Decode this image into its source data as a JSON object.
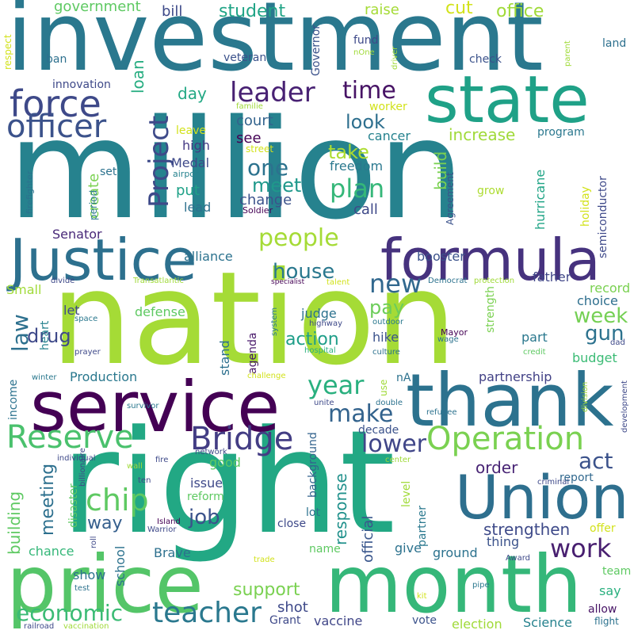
{
  "words": [
    {
      "text": "million",
      "color": "#26828e"
    },
    {
      "text": "nation",
      "color": "#a5db36"
    },
    {
      "text": "right",
      "color": "#22a884"
    },
    {
      "text": "investment",
      "color": "#2a788e"
    },
    {
      "text": "service",
      "color": "#440154"
    },
    {
      "text": "thank",
      "color": "#2c728e"
    },
    {
      "text": "month",
      "color": "#35b779"
    },
    {
      "text": "price",
      "color": "#54c568"
    },
    {
      "text": "Justice",
      "color": "#2d708e"
    },
    {
      "text": "formula",
      "color": "#46327e"
    },
    {
      "text": "state",
      "color": "#1fa187"
    },
    {
      "text": "Union",
      "color": "#2e6f8e"
    },
    {
      "text": "force",
      "color": "#3e4989"
    },
    {
      "text": "officer",
      "color": "#3b528b"
    },
    {
      "text": "Reserve",
      "color": "#4ac16d"
    },
    {
      "text": "Bridge",
      "color": "#433d84"
    },
    {
      "text": "Operation",
      "color": "#7ad151"
    },
    {
      "text": "Project",
      "color": "#3e4a89"
    },
    {
      "text": "teacher",
      "color": "#2a788e"
    },
    {
      "text": "economic",
      "color": "#3bbb75"
    },
    {
      "text": "chip",
      "color": "#5ec962"
    },
    {
      "text": "work",
      "color": "#481f70"
    },
    {
      "text": "leader",
      "color": "#482173"
    },
    {
      "text": "plan",
      "color": "#35b779"
    },
    {
      "text": "people",
      "color": "#a5db36"
    },
    {
      "text": "house",
      "color": "#2a788e"
    },
    {
      "text": "new",
      "color": "#31688e"
    },
    {
      "text": "year",
      "color": "#2ab07f"
    },
    {
      "text": "make",
      "color": "#33638d"
    },
    {
      "text": "lower",
      "color": "#404688"
    },
    {
      "text": "act",
      "color": "#3b528b"
    },
    {
      "text": "meet",
      "color": "#1f988b"
    },
    {
      "text": "one",
      "color": "#2c728e"
    },
    {
      "text": "time",
      "color": "#471365"
    },
    {
      "text": "look",
      "color": "#2e6f8e"
    },
    {
      "text": "take",
      "color": "#addc30"
    },
    {
      "text": "law",
      "color": "#2d708e"
    },
    {
      "text": "drug",
      "color": "#3e4989"
    },
    {
      "text": "action",
      "color": "#1f9e89"
    },
    {
      "text": "pay",
      "color": "#6ccd5a"
    },
    {
      "text": "week",
      "color": "#75d054"
    },
    {
      "text": "gun",
      "color": "#2c728e"
    },
    {
      "text": "support",
      "color": "#7ad151"
    },
    {
      "text": "job",
      "color": "#3b528b"
    },
    {
      "text": "way",
      "color": "#355f8d"
    },
    {
      "text": "meeting",
      "color": "#2d708e"
    },
    {
      "text": "building",
      "color": "#5ec962"
    },
    {
      "text": "order",
      "color": "#482475"
    },
    {
      "text": "strengthen",
      "color": "#3e4a89"
    },
    {
      "text": "response",
      "color": "#21918c"
    },
    {
      "text": "official",
      "color": "#39568c"
    },
    {
      "text": "student",
      "color": "#20a486"
    },
    {
      "text": "office",
      "color": "#a0da39"
    },
    {
      "text": "cut",
      "color": "#d2e21b"
    },
    {
      "text": "government",
      "color": "#5ec962"
    },
    {
      "text": "bill",
      "color": "#3e4a89"
    },
    {
      "text": "raise",
      "color": "#a5db36"
    },
    {
      "text": "loan",
      "color": "#27ad81"
    },
    {
      "text": "day",
      "color": "#22a884"
    },
    {
      "text": "court",
      "color": "#33638d"
    },
    {
      "text": "see",
      "color": "#440154"
    },
    {
      "text": "change",
      "color": "#3b528b"
    },
    {
      "text": "build",
      "color": "#7ad151"
    },
    {
      "text": "increase",
      "color": "#a0da39"
    },
    {
      "text": "cancer",
      "color": "#26828e"
    },
    {
      "text": "freedom",
      "color": "#2a788e"
    },
    {
      "text": "call",
      "color": "#3e4989"
    },
    {
      "text": "put",
      "color": "#1fa187"
    },
    {
      "text": "lead",
      "color": "#2d708e"
    },
    {
      "text": "high",
      "color": "#443983"
    },
    {
      "text": "Medal",
      "color": "#3e4989"
    },
    {
      "text": "create",
      "color": "#7ad151"
    },
    {
      "text": "alliance",
      "color": "#2c728e"
    },
    {
      "text": "Senator",
      "color": "#482878"
    },
    {
      "text": "father",
      "color": "#404688"
    },
    {
      "text": "booster",
      "color": "#3b528b"
    },
    {
      "text": "record",
      "color": "#7ad151"
    },
    {
      "text": "choice",
      "color": "#2e6f8e"
    },
    {
      "text": "part",
      "color": "#2a788e"
    },
    {
      "text": "budget",
      "color": "#3bbb75"
    },
    {
      "text": "partnership",
      "color": "#424186"
    },
    {
      "text": "report",
      "color": "#31688e"
    },
    {
      "text": "Production",
      "color": "#2a788e"
    },
    {
      "text": "defense",
      "color": "#5ec962"
    },
    {
      "text": "judge",
      "color": "#2c728e"
    },
    {
      "text": "hike",
      "color": "#3b528b"
    },
    {
      "text": "stand",
      "color": "#2d708e"
    },
    {
      "text": "agenda",
      "color": "#48186a"
    },
    {
      "text": "strength",
      "color": "#7ad151"
    },
    {
      "text": "good",
      "color": "#5ec962"
    },
    {
      "text": "issue",
      "color": "#3e4989"
    },
    {
      "text": "reform",
      "color": "#5ec962"
    },
    {
      "text": "chance",
      "color": "#35b779"
    },
    {
      "text": "Brave",
      "color": "#2d708e"
    },
    {
      "text": "school",
      "color": "#2c728e"
    },
    {
      "text": "show",
      "color": "#2c728e"
    },
    {
      "text": "name",
      "color": "#5ec962"
    },
    {
      "text": "give",
      "color": "#2c728e"
    },
    {
      "text": "ground",
      "color": "#2c728e"
    },
    {
      "text": "thing",
      "color": "#3b528b"
    },
    {
      "text": "shot",
      "color": "#3e4989"
    },
    {
      "text": "Grant",
      "color": "#3e4989"
    },
    {
      "text": "vaccine",
      "color": "#404688"
    },
    {
      "text": "vote",
      "color": "#3b528b"
    },
    {
      "text": "election",
      "color": "#a0da39"
    },
    {
      "text": "Science",
      "color": "#26828e"
    },
    {
      "text": "allow",
      "color": "#471365"
    },
    {
      "text": "say",
      "color": "#2ab07f"
    },
    {
      "text": "team",
      "color": "#5ec962"
    },
    {
      "text": "offer",
      "color": "#d2e21b"
    },
    {
      "text": "close",
      "color": "#3e4989"
    },
    {
      "text": "lot",
      "color": "#2c728e"
    },
    {
      "text": "decade",
      "color": "#3b528b"
    },
    {
      "text": "level",
      "color": "#a0da39"
    },
    {
      "text": "partner",
      "color": "#2a788e"
    },
    {
      "text": "background",
      "color": "#33638d"
    },
    {
      "text": "disaster",
      "color": "#5ec962"
    },
    {
      "text": "heart",
      "color": "#26828e"
    },
    {
      "text": "income",
      "color": "#2c728e"
    },
    {
      "text": "Small",
      "color": "#a0da39"
    },
    {
      "text": "let",
      "color": "#3e4989"
    },
    {
      "text": "hurricane",
      "color": "#20a486"
    },
    {
      "text": "holiday",
      "color": "#d2e21b"
    },
    {
      "text": "semiconductor",
      "color": "#3e4989"
    },
    {
      "text": "program",
      "color": "#2a788e"
    },
    {
      "text": "grow",
      "color": "#addc30"
    },
    {
      "text": "Agreement",
      "color": "#3b528b"
    },
    {
      "text": "period",
      "color": "#2a788e"
    },
    {
      "text": "set",
      "color": "#2c728e"
    },
    {
      "text": "worker",
      "color": "#d2e21b"
    },
    {
      "text": "fund",
      "color": "#3e4989"
    },
    {
      "text": "check",
      "color": "#3b528b"
    },
    {
      "text": "land",
      "color": "#2d708e"
    },
    {
      "text": "ban",
      "color": "#2d708e"
    },
    {
      "text": "veteran",
      "color": "#3b528b"
    },
    {
      "text": "Governor",
      "color": "#3b528b"
    },
    {
      "text": "innovation",
      "color": "#3e4989"
    },
    {
      "text": "respect",
      "color": "#d2e21b"
    },
    {
      "text": "leave",
      "color": "#d2e21b"
    },
    {
      "text": "street",
      "color": "#d2e21b"
    },
    {
      "text": "airport",
      "color": "#26828e"
    },
    {
      "text": "Soldier",
      "color": "#440154"
    },
    {
      "text": "firefighter",
      "color": "#2c728e"
    },
    {
      "text": "nOne",
      "color": "#a0da39"
    },
    {
      "text": "driver",
      "color": "#a0da39"
    },
    {
      "text": "parent",
      "color": "#a0da39"
    },
    {
      "text": "familie",
      "color": "#a0da39"
    },
    {
      "text": "divide",
      "color": "#3e4989"
    },
    {
      "text": "Transatlantic",
      "color": "#a0da39"
    },
    {
      "text": "specialist",
      "color": "#440154"
    },
    {
      "text": "talent",
      "color": "#d2e21b"
    },
    {
      "text": "Democrat",
      "color": "#2c728e"
    },
    {
      "text": "protection",
      "color": "#a0da39"
    },
    {
      "text": "space",
      "color": "#2a788e"
    },
    {
      "text": "system",
      "color": "#2a788e"
    },
    {
      "text": "highway",
      "color": "#3e4989"
    },
    {
      "text": "outdoor",
      "color": "#2a788e"
    },
    {
      "text": "Mayor",
      "color": "#440154"
    },
    {
      "text": "wage",
      "color": "#2c728e"
    },
    {
      "text": "credit",
      "color": "#5ec962"
    },
    {
      "text": "dad",
      "color": "#3e4989"
    },
    {
      "text": "prayer",
      "color": "#3e4989"
    },
    {
      "text": "hospital",
      "color": "#2ab07f"
    },
    {
      "text": "culture",
      "color": "#2c728e"
    },
    {
      "text": "winter",
      "color": "#2a788e"
    },
    {
      "text": "challenge",
      "color": "#d2e21b"
    },
    {
      "text": "nA",
      "color": "#2c728e"
    },
    {
      "text": "use",
      "color": "#a0da39"
    },
    {
      "text": "double",
      "color": "#2c728e"
    },
    {
      "text": "unite",
      "color": "#3e4989"
    },
    {
      "text": "survivor",
      "color": "#2a788e"
    },
    {
      "text": "refugee",
      "color": "#2c728e"
    },
    {
      "text": "division",
      "color": "#a0da39"
    },
    {
      "text": "development",
      "color": "#3e4989"
    },
    {
      "text": "individual",
      "color": "#3e4989"
    },
    {
      "text": "wall",
      "color": "#a0da39"
    },
    {
      "text": "fire",
      "color": "#3e4989"
    },
    {
      "text": "network",
      "color": "#3e4989"
    },
    {
      "text": "center",
      "color": "#a0da39"
    },
    {
      "text": "billionaire",
      "color": "#3e4989"
    },
    {
      "text": "ten",
      "color": "#3e4989"
    },
    {
      "text": "Island",
      "color": "#440154"
    },
    {
      "text": "Warrior",
      "color": "#3e4989"
    },
    {
      "text": "criminal",
      "color": "#3e4989"
    },
    {
      "text": "roll",
      "color": "#3e4989"
    },
    {
      "text": "trade",
      "color": "#d2e21b"
    },
    {
      "text": "Award",
      "color": "#3e4989"
    },
    {
      "text": "flight",
      "color": "#2c728e"
    },
    {
      "text": "test",
      "color": "#2c728e"
    },
    {
      "text": "kit",
      "color": "#d2e21b"
    },
    {
      "text": "pipe",
      "color": "#2a788e"
    },
    {
      "text": "railroad",
      "color": "#3e4989"
    },
    {
      "text": "vaccination",
      "color": "#a0da39"
    }
  ]
}
